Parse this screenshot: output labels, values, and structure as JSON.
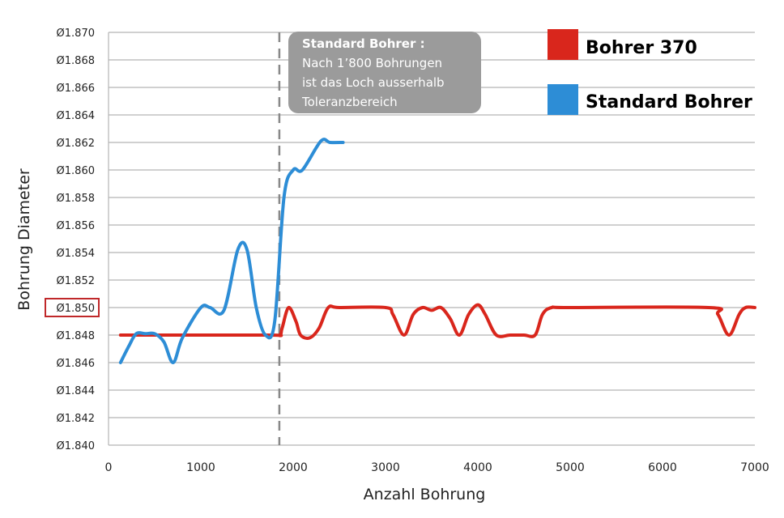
{
  "chart_data": {
    "type": "line",
    "title": "",
    "xlabel": "Anzahl Bohrung",
    "ylabel": "Bohrung Diameter",
    "xlim": [
      0,
      7000
    ],
    "ylim": [
      1.84,
      1.87
    ],
    "x_ticks": [
      "0",
      "1000",
      "2000",
      "3000",
      "4000",
      "5000",
      "6000",
      "7000"
    ],
    "x_tick_values": [
      0,
      1000,
      2000,
      3000,
      4000,
      5000,
      6000,
      7000
    ],
    "y_ticks": [
      "Ø1.840",
      "Ø1.842",
      "Ø1.844",
      "Ø1.846",
      "Ø1.848",
      "Ø1.850",
      "Ø1.852",
      "Ø1.854",
      "Ø1.856",
      "Ø1.858",
      "Ø1.860",
      "Ø1.862",
      "Ø1.864",
      "Ø1.866",
      "Ø1.868",
      "Ø1.870"
    ],
    "y_tick_values": [
      1.84,
      1.842,
      1.844,
      1.846,
      1.848,
      1.85,
      1.852,
      1.854,
      1.856,
      1.858,
      1.86,
      1.862,
      1.864,
      1.866,
      1.868,
      1.87
    ],
    "highlighted_y_tick": "Ø1.850",
    "grid": "horizontal",
    "legend_position": "top-right",
    "series": [
      {
        "name": "Bohrer 370",
        "color": "#d9261c",
        "points": [
          [
            130,
            1.848
          ],
          [
            1700,
            1.848
          ],
          [
            1850,
            1.848
          ],
          [
            1880,
            1.8485
          ],
          [
            1950,
            1.85
          ],
          [
            2030,
            1.849
          ],
          [
            2080,
            1.848
          ],
          [
            2180,
            1.8478
          ],
          [
            2280,
            1.8485
          ],
          [
            2380,
            1.85
          ],
          [
            2500,
            1.85
          ],
          [
            3000,
            1.85
          ],
          [
            3080,
            1.8495
          ],
          [
            3200,
            1.848
          ],
          [
            3300,
            1.8495
          ],
          [
            3400,
            1.85
          ],
          [
            3500,
            1.8498
          ],
          [
            3600,
            1.85
          ],
          [
            3700,
            1.8492
          ],
          [
            3800,
            1.848
          ],
          [
            3900,
            1.8495
          ],
          [
            4000,
            1.8502
          ],
          [
            4080,
            1.8495
          ],
          [
            4200,
            1.848
          ],
          [
            4350,
            1.848
          ],
          [
            4500,
            1.848
          ],
          [
            4620,
            1.848
          ],
          [
            4700,
            1.8495
          ],
          [
            4800,
            1.85
          ],
          [
            5000,
            1.85
          ],
          [
            6500,
            1.85
          ],
          [
            6600,
            1.8495
          ],
          [
            6720,
            1.848
          ],
          [
            6830,
            1.8495
          ],
          [
            6900,
            1.85
          ],
          [
            7000,
            1.85
          ]
        ]
      },
      {
        "name": "Standard Bohrer",
        "color": "#2d8dd6",
        "points": [
          [
            130,
            1.846
          ],
          [
            220,
            1.8472
          ],
          [
            300,
            1.8481
          ],
          [
            400,
            1.8481
          ],
          [
            500,
            1.8481
          ],
          [
            600,
            1.8475
          ],
          [
            700,
            1.846
          ],
          [
            800,
            1.8478
          ],
          [
            1000,
            1.85
          ],
          [
            1100,
            1.85
          ],
          [
            1250,
            1.8498
          ],
          [
            1400,
            1.8542
          ],
          [
            1500,
            1.8542
          ],
          [
            1600,
            1.85
          ],
          [
            1700,
            1.848
          ],
          [
            1800,
            1.849
          ],
          [
            1900,
            1.858
          ],
          [
            2000,
            1.86
          ],
          [
            2100,
            1.86
          ],
          [
            2300,
            1.8621
          ],
          [
            2400,
            1.862
          ],
          [
            2540,
            1.862
          ]
        ]
      }
    ],
    "vertical_line": {
      "x": 1850,
      "style": "dashed"
    },
    "annotation": {
      "title": "Standard Bohrer :",
      "lines": [
        "Nach 1’800 Bohrungen",
        "ist das Loch ausserhalb",
        "Toleranzbereich"
      ]
    },
    "legend": [
      {
        "label": "Bohrer 370",
        "color": "#d9261c"
      },
      {
        "label": "Standard Bohrer",
        "color": "#2d8dd6"
      }
    ]
  }
}
